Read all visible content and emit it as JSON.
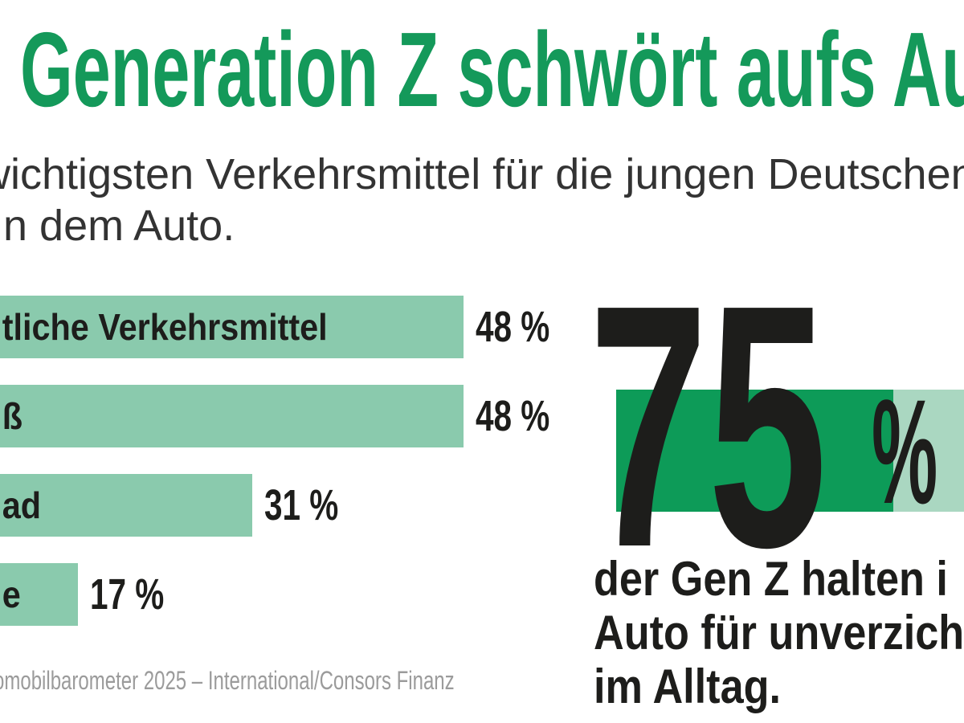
{
  "title": "Generation Z schwört aufs Au",
  "subtitle_lines": [
    "wichtigsten Verkehrsmittel für die jungen Deutschen",
    "n dem Auto."
  ],
  "source": "omobilbarometer 2025 – International/Consors Finanz",
  "colors": {
    "title_green": "#14995a",
    "bar_light_green": "#8acaad",
    "kpi_fill_green": "#0d9b58",
    "kpi_track_green": "#aad7c1",
    "text_dark": "#1d1d1b",
    "source_gray": "#9b9b9b"
  },
  "chart_data": [
    {
      "type": "bar",
      "orientation": "horizontal",
      "categories": [
        "tliche Verkehrsmittel",
        "ß",
        "ad",
        "e"
      ],
      "categories_note": "category labels truncated by left image crop",
      "values": [
        48,
        48,
        31,
        17
      ],
      "value_labels": [
        "48 %",
        "48 %",
        "31 %",
        "17 %"
      ],
      "value_range": [
        0,
        100
      ],
      "bar_color": "#8acaad",
      "grid": false,
      "legend": false
    },
    {
      "type": "bar",
      "style": "kpi-highlight",
      "value": 75,
      "value_range": [
        0,
        100
      ],
      "big_number": "75",
      "unit": "%",
      "caption_lines": [
        "der Gen Z halten i",
        "Auto für unverzich",
        "im Alltag."
      ],
      "fill_color": "#0d9b58",
      "track_color": "#aad7c1"
    }
  ]
}
